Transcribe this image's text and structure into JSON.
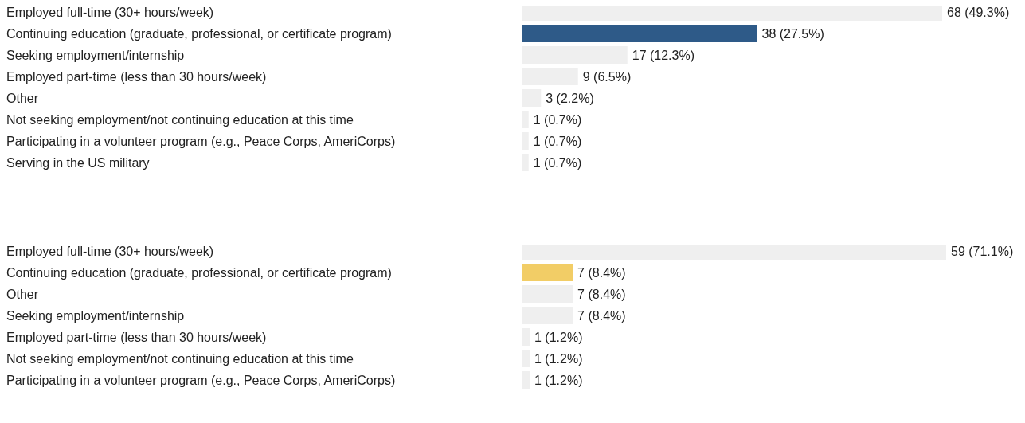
{
  "chart_data": [
    {
      "type": "bar",
      "orientation": "horizontal",
      "categories": [
        "Employed full-time (30+ hours/week)",
        "Continuing education (graduate, professional, or certificate program)",
        "Seeking employment/internship",
        "Employed part-time (less than 30 hours/week)",
        "Other",
        "Not seeking employment/not continuing education at this time",
        "Participating in a volunteer program (e.g., Peace Corps, AmeriCorps)",
        "Serving in the US military"
      ],
      "values": [
        68,
        38,
        17,
        9,
        3,
        1,
        1,
        1
      ],
      "colors": [
        "#efefef",
        "#2e5a88",
        "#efefef",
        "#efefef",
        "#efefef",
        "#efefef",
        "#efefef",
        "#efefef"
      ],
      "value_labels": [
        "68 (49.3%)",
        "38 (27.5%)",
        "17 (12.3%)",
        "9 (6.5%)",
        "3 (2.2%)",
        "1 (0.7%)",
        "1 (0.7%)",
        "1 (0.7%)"
      ]
    },
    {
      "type": "bar",
      "orientation": "horizontal",
      "categories": [
        "Employed full-time (30+ hours/week)",
        "Continuing education (graduate, professional, or certificate program)",
        "Other",
        "Seeking employment/internship",
        "Employed part-time (less than 30 hours/week)",
        "Not seeking employment/not continuing education at this time",
        "Participating in a volunteer program (e.g., Peace Corps, AmeriCorps)"
      ],
      "values": [
        59,
        7,
        7,
        7,
        1,
        1,
        1
      ],
      "colors": [
        "#efefef",
        "#f2cd66",
        "#efefef",
        "#efefef",
        "#efefef",
        "#efefef",
        "#efefef"
      ],
      "value_labels": [
        "59 (71.1%)",
        "7 (8.4%)",
        "7 (8.4%)",
        "7 (8.4%)",
        "1 (1.2%)",
        "1 (1.2%)",
        "1 (1.2%)"
      ]
    }
  ]
}
